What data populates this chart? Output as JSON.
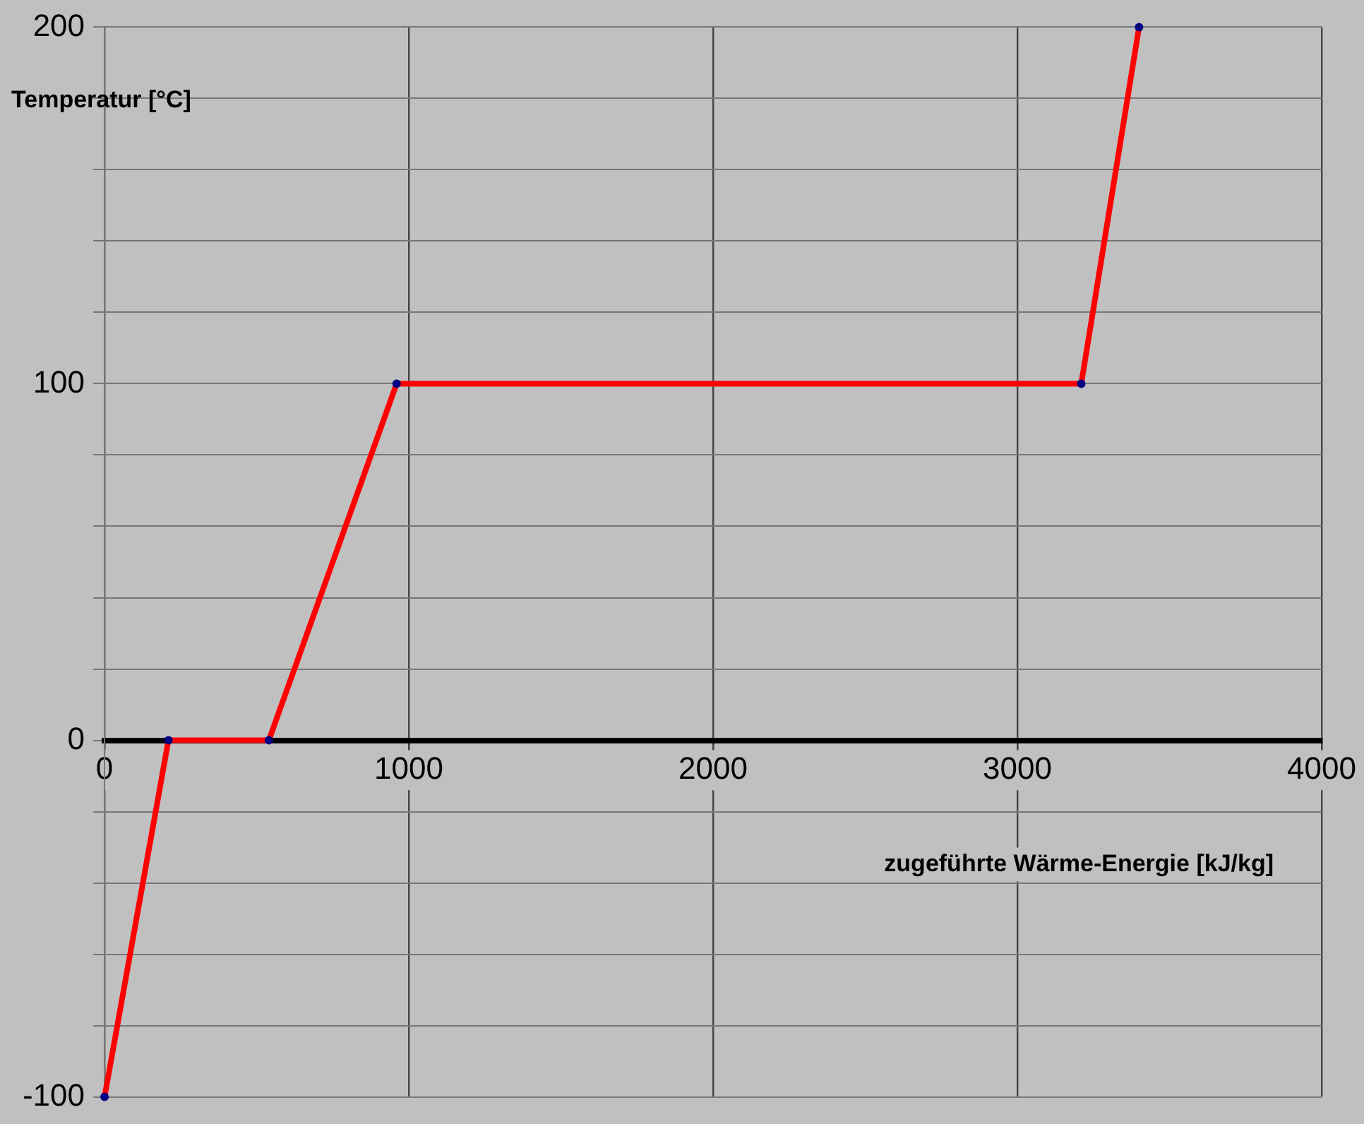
{
  "chart_data": {
    "type": "line",
    "xlabel": "zugeführte Wärme-Energie [kJ/kg]",
    "ylabel": "Temperatur [°C]",
    "x": [
      0,
      210,
      540,
      960,
      3210,
      3400
    ],
    "series": [
      {
        "color": "#ff0000",
        "values": [
          -100,
          0,
          0,
          100,
          100,
          200
        ]
      }
    ],
    "xlim": [
      0,
      4000
    ],
    "xticks": [
      0,
      1000,
      2000,
      3000,
      4000
    ],
    "ylim": [
      -100,
      200
    ],
    "yticks": [
      -100,
      {
        "value": -80,
        "label": null
      },
      {
        "value": -60,
        "label": null
      },
      {
        "value": -40,
        "label": null
      },
      {
        "value": -20,
        "label": null
      },
      0,
      {
        "value": 20,
        "label": null
      },
      {
        "value": 40,
        "label": null
      },
      {
        "value": 60,
        "label": null
      },
      {
        "value": 80,
        "label": null
      },
      100,
      {
        "value": 120,
        "label": null
      },
      {
        "value": 140,
        "label": null
      },
      {
        "value": 160,
        "label": null
      },
      {
        "value": 180,
        "label": null
      },
      200
    ],
    "grid": true,
    "marker": "circle",
    "line_style": "solid",
    "legend": false
  }
}
